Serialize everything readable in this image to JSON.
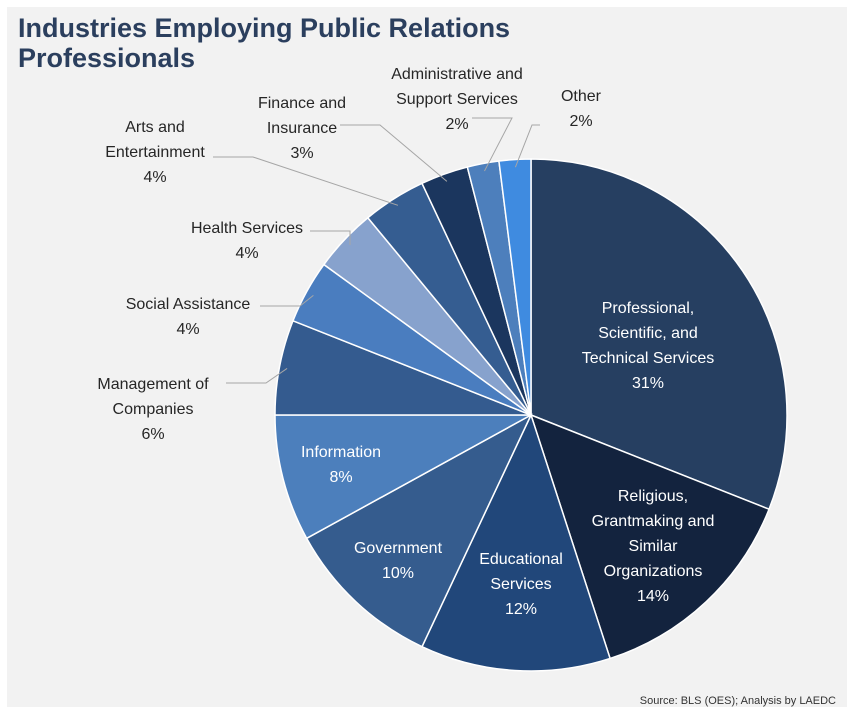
{
  "title": "Industries Employing Public Relations Professionals",
  "source": "Source: BLS (OES); Analysis by LAEDC",
  "chart_data": {
    "type": "pie",
    "title": "Industries Employing Public Relations Professionals",
    "start": "12 o'clock",
    "direction": "clockwise",
    "slices": [
      {
        "lines": [
          "Professional,",
          "Scientific, and",
          "Technical Services"
        ],
        "value": 31,
        "pct": "31%",
        "color": "#263f61",
        "label_pos": "inside"
      },
      {
        "lines": [
          "Religious,",
          "Grantmaking and",
          "Similar",
          "Organizations"
        ],
        "value": 14,
        "pct": "14%",
        "color": "#13233e",
        "label_pos": "inside"
      },
      {
        "lines": [
          "Educational",
          "Services"
        ],
        "value": 12,
        "pct": "12%",
        "color": "#21477a",
        "label_pos": "inside"
      },
      {
        "lines": [
          "Government"
        ],
        "value": 10,
        "pct": "10%",
        "color": "#355c8e",
        "label_pos": "inside"
      },
      {
        "lines": [
          "Information"
        ],
        "value": 8,
        "pct": "8%",
        "color": "#4c7fbc",
        "label_pos": "inside"
      },
      {
        "lines": [
          "Management of",
          "Companies"
        ],
        "value": 6,
        "pct": "6%",
        "color": "#345b8f",
        "label_pos": "outside"
      },
      {
        "lines": [
          "Social Assistance"
        ],
        "value": 4,
        "pct": "4%",
        "color": "#4a7dbf",
        "label_pos": "outside"
      },
      {
        "lines": [
          "Health Services"
        ],
        "value": 4,
        "pct": "4%",
        "color": "#87a2cd",
        "label_pos": "outside"
      },
      {
        "lines": [
          "Arts and",
          "Entertainment"
        ],
        "value": 4,
        "pct": "4%",
        "color": "#355d91",
        "label_pos": "outside"
      },
      {
        "lines": [
          "Finance and",
          "Insurance"
        ],
        "value": 3,
        "pct": "3%",
        "color": "#1b365e",
        "label_pos": "outside"
      },
      {
        "lines": [
          "Administrative and",
          "Support Services"
        ],
        "value": 2,
        "pct": "2%",
        "color": "#4d7fbc",
        "label_pos": "outside"
      },
      {
        "lines": [
          "Other"
        ],
        "value": 2,
        "pct": "2%",
        "color": "#3f8be0",
        "label_pos": "outside"
      }
    ]
  }
}
